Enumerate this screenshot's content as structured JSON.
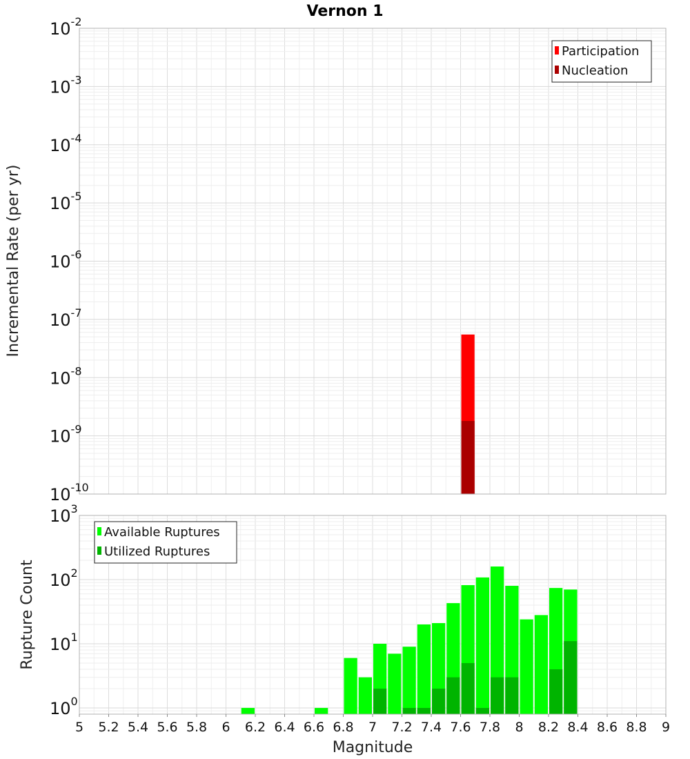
{
  "title": "Vernon 1",
  "colors": {
    "participation": "#ff0000",
    "nucleation": "#aa0000",
    "available": "#00ff00",
    "utilized": "#00b400",
    "grid": "#e6e6e6",
    "frame": "#b0b0b0"
  },
  "chart_data": [
    {
      "type": "bar",
      "name": "rate",
      "xlabel": "Magnitude",
      "ylabel": "Incremental Rate (per yr)",
      "xlim": [
        5,
        9
      ],
      "ylim": [
        1e-10,
        0.01
      ],
      "yscale": "log",
      "ytick_exponents": [
        -2,
        -3,
        -4,
        -5,
        -6,
        -7,
        -8,
        -9,
        -10
      ],
      "grid": true,
      "legend_position": "top-right",
      "legend": [
        "Participation",
        "Nucleation"
      ],
      "bin_width": 0.1,
      "series": [
        {
          "name": "Participation",
          "x": [
            7.65
          ],
          "values": [
            5.5e-08
          ]
        },
        {
          "name": "Nucleation",
          "x": [
            7.65
          ],
          "values": [
            1.8e-09
          ]
        }
      ]
    },
    {
      "type": "bar",
      "name": "rupture_count",
      "xlabel": "Magnitude",
      "ylabel": "Rupture Count",
      "xlim": [
        5,
        9
      ],
      "ylim": [
        0.8,
        1000
      ],
      "yscale": "log",
      "ytick_exponents": [
        3,
        2,
        1,
        0
      ],
      "grid": true,
      "legend_position": "top-left",
      "legend": [
        "Available Ruptures",
        "Utilized Ruptures"
      ],
      "bin_width": 0.1,
      "xticks": [
        5,
        5.2,
        5.4,
        5.6,
        5.8,
        6,
        6.2,
        6.4,
        6.6,
        6.8,
        7,
        7.2,
        7.4,
        7.6,
        7.8,
        8,
        8.2,
        8.4,
        8.6,
        8.8,
        9
      ],
      "xtick_labels": [
        "5",
        "5.2",
        "5.4",
        "5.6",
        "5.8",
        "6",
        "6.2",
        "6.4",
        "6.6",
        "6.8",
        "7",
        "7.2",
        "7.4",
        "7.6",
        "7.8",
        "8",
        "8.2",
        "8.4",
        "8.6",
        "8.8",
        "9"
      ],
      "series": [
        {
          "name": "Available Ruptures",
          "x": [
            6.15,
            6.65,
            6.85,
            6.95,
            7.05,
            7.15,
            7.25,
            7.35,
            7.45,
            7.55,
            7.65,
            7.75,
            7.85,
            7.95,
            8.05,
            8.15,
            8.25,
            8.35
          ],
          "values": [
            1,
            1,
            6,
            3,
            10,
            7,
            9,
            20,
            21,
            43,
            82,
            108,
            160,
            80,
            24,
            28,
            74,
            70
          ]
        },
        {
          "name": "Utilized Ruptures",
          "x": [
            7.05,
            7.25,
            7.35,
            7.45,
            7.55,
            7.65,
            7.75,
            7.85,
            7.95,
            8.25,
            8.35
          ],
          "values": [
            2,
            1,
            1,
            2,
            3,
            5,
            1,
            3,
            3,
            4,
            11
          ]
        }
      ]
    }
  ]
}
